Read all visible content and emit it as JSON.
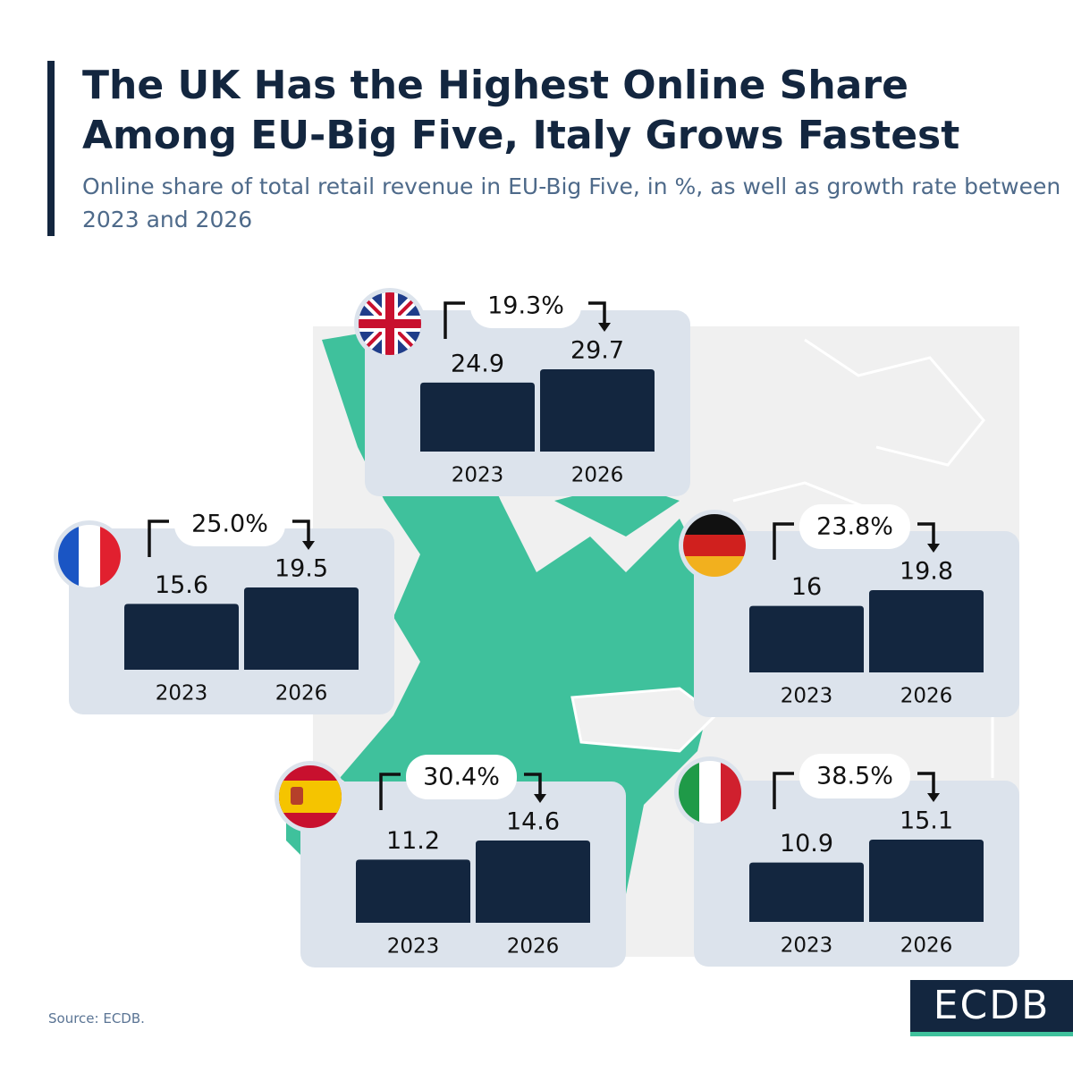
{
  "header": {
    "title": "The UK Has the Highest Online Share Among EU-Big Five, Italy Grows Fastest",
    "subtitle": "Online share of total retail revenue in EU-Big Five, in %, as well as growth rate between 2023 and 2026"
  },
  "chart_data": [
    {
      "type": "bar",
      "annotation": "19.3%",
      "categories": [
        "2023",
        "2026"
      ],
      "values": [
        24.9,
        29.7
      ],
      "color": "#13263f"
    },
    {
      "type": "bar",
      "annotation": "25.0%",
      "categories": [
        "2023",
        "2026"
      ],
      "values": [
        15.6,
        19.5
      ],
      "color": "#13263f"
    },
    {
      "type": "bar",
      "annotation": "23.8%",
      "categories": [
        "2023",
        "2026"
      ],
      "values": [
        16,
        19.8
      ],
      "color": "#13263f"
    },
    {
      "type": "bar",
      "annotation": "30.4%",
      "categories": [
        "2023",
        "2026"
      ],
      "values": [
        11.2,
        14.6
      ],
      "color": "#13263f"
    },
    {
      "type": "bar",
      "annotation": "38.5%",
      "categories": [
        "2023",
        "2026"
      ],
      "values": [
        10.9,
        15.1
      ],
      "color": "#13263f"
    }
  ],
  "footer": {
    "source": "Source: ECDB.",
    "logo": "ECDB"
  }
}
